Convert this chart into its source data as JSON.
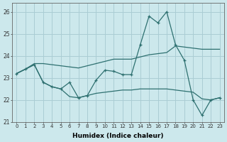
{
  "xlabel": "Humidex (Indice chaleur)",
  "x": [
    0,
    1,
    2,
    3,
    4,
    5,
    6,
    7,
    8,
    9,
    10,
    11,
    12,
    13,
    14,
    15,
    16,
    17,
    18,
    19,
    20,
    21,
    22,
    23
  ],
  "line_spike": [
    23.2,
    23.4,
    23.6,
    22.8,
    22.6,
    22.5,
    22.8,
    22.1,
    22.2,
    22.9,
    23.35,
    23.3,
    23.15,
    23.15,
    24.5,
    25.8,
    25.5,
    26.0,
    24.5,
    23.8,
    22.0,
    21.3,
    22.0,
    22.1
  ],
  "line_upper": [
    23.2,
    23.4,
    23.65,
    23.65,
    23.6,
    23.55,
    23.5,
    23.45,
    23.55,
    23.65,
    23.75,
    23.85,
    23.85,
    23.85,
    23.95,
    24.05,
    24.1,
    24.15,
    24.45,
    24.4,
    24.35,
    24.3,
    24.3,
    24.3
  ],
  "line_lower": [
    23.2,
    23.4,
    23.6,
    22.8,
    22.6,
    22.5,
    22.15,
    22.1,
    22.2,
    22.3,
    22.35,
    22.4,
    22.45,
    22.45,
    22.5,
    22.5,
    22.5,
    22.5,
    22.45,
    22.4,
    22.35,
    22.05,
    22.0,
    22.1
  ],
  "color": "#2e7070",
  "bg_color": "#cce8ec",
  "grid_color": "#aacdd4",
  "ylim": [
    21,
    26.4
  ],
  "yticks": [
    21,
    22,
    23,
    24,
    25,
    26
  ],
  "xticks": [
    0,
    1,
    2,
    3,
    4,
    5,
    6,
    7,
    8,
    9,
    10,
    11,
    12,
    13,
    14,
    15,
    16,
    17,
    18,
    19,
    20,
    21,
    22,
    23
  ]
}
